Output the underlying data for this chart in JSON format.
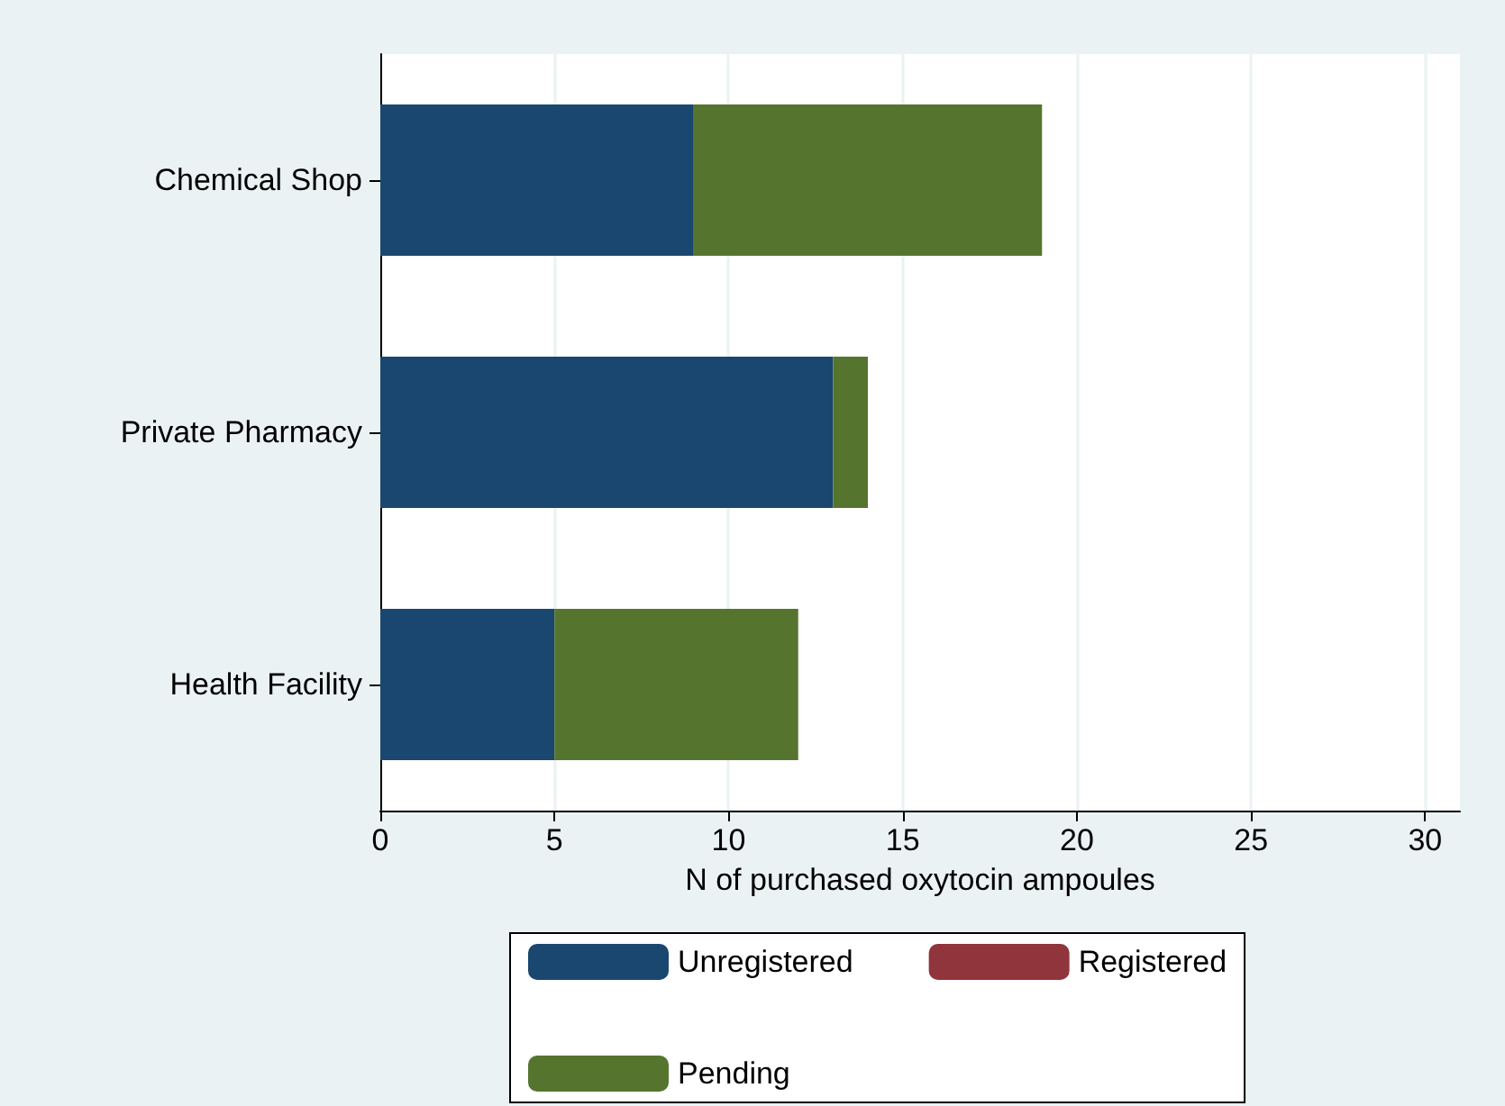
{
  "chart_data": {
    "type": "bar",
    "orientation": "horizontal",
    "stacked": true,
    "categories": [
      "Chemical Shop",
      "Private Pharmacy",
      "Health Facility"
    ],
    "series": [
      {
        "name": "Unregistered",
        "color": "#1a476f",
        "values": [
          9,
          13,
          5
        ]
      },
      {
        "name": "Registered",
        "color": "#90353b",
        "values": [
          0,
          0,
          0
        ]
      },
      {
        "name": "Pending",
        "color": "#55752f",
        "values": [
          10,
          1,
          7
        ]
      }
    ],
    "xlabel": "N of purchased oxytocin ampoules",
    "xlim": [
      0,
      31
    ],
    "xticks": [
      0,
      5,
      10,
      15,
      20,
      25,
      30
    ],
    "grid": "x",
    "legend": "bottom"
  }
}
